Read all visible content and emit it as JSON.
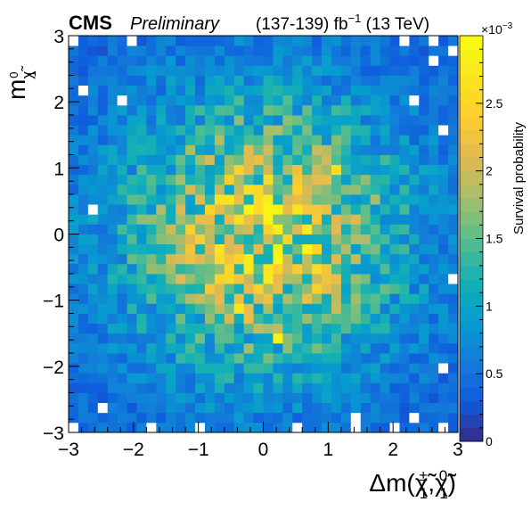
{
  "title": {
    "experiment": "CMS",
    "status": "Preliminary",
    "lumi_prefix": "(137-139) fb",
    "lumi_exp": "−1",
    "lumi_suffix": " (13 TeV)"
  },
  "axes": {
    "x_main": "Δm(",
    "x_sym1": "χ̃",
    "x_sup1": "±",
    "x_sub1": "1",
    "x_comma": ",",
    "x_sym2": "χ̃",
    "x_sup2": "0",
    "x_sub2": "1",
    "x_close": ")",
    "y_main": "m",
    "y_sym": "χ̃",
    "y_sup": "0",
    "y_sub": "1",
    "z_label": "Survival probability",
    "z_multiplier_base": "×10",
    "z_multiplier_exp": "−3"
  },
  "chart_data": {
    "type": "heatmap",
    "xlabel": "Δm(χ̃±1,χ̃01)",
    "ylabel": "mχ̃01",
    "zlabel": "Survival probability",
    "x_range": [
      -3,
      3
    ],
    "y_range": [
      -3,
      3
    ],
    "z_range": [
      0,
      0.003
    ],
    "x_ticks": [
      "−3",
      "−2",
      "−1",
      "0",
      "1",
      "2",
      "3"
    ],
    "y_ticks": [
      "−3",
      "−2",
      "−1",
      "0",
      "1",
      "2",
      "3"
    ],
    "z_ticks": [
      "0",
      "0.5",
      "1",
      "1.5",
      "2",
      "2.5"
    ],
    "z_tick_values": [
      0,
      0.5,
      1,
      1.5,
      2,
      2.5
    ],
    "z_max_display": 3,
    "bins_x": 40,
    "bins_y": 40,
    "values_scale": "values in units of 1e-3",
    "notable_cells": [
      {
        "x": 0.15,
        "y": -0.45,
        "value": 2.95
      },
      {
        "x": 0.15,
        "y": -1.65,
        "value": 2.9
      },
      {
        "x": 0.65,
        "y": -0.2,
        "value": 2.9
      },
      {
        "x": -0.35,
        "y": -1.2,
        "value": 2.7
      },
      {
        "x": 1.05,
        "y": 1.0,
        "value": 2.6
      }
    ],
    "empty_cells": [
      {
        "x": -2.85,
        "y": 2.85
      },
      {
        "x": -2.05,
        "y": 2.85
      },
      {
        "x": 2.15,
        "y": 2.85
      },
      {
        "x": 2.55,
        "y": 2.85
      },
      {
        "x": 2.85,
        "y": 2.7
      },
      {
        "x": 2.6,
        "y": 2.55
      },
      {
        "x": -2.7,
        "y": 2.2
      },
      {
        "x": -2.2,
        "y": 2.0
      },
      {
        "x": 2.3,
        "y": 2.05
      },
      {
        "x": -2.6,
        "y": 0.3
      },
      {
        "x": -2.85,
        "y": -2.85
      },
      {
        "x": -2.45,
        "y": -2.6
      },
      {
        "x": -1.75,
        "y": -2.9
      },
      {
        "x": 1.35,
        "y": -2.75
      },
      {
        "x": 1.45,
        "y": -2.95
      },
      {
        "x": 2.05,
        "y": -2.85
      },
      {
        "x": 2.35,
        "y": -2.75
      },
      {
        "x": 2.8,
        "y": -2.95
      },
      {
        "x": 2.8,
        "y": -2.0
      },
      {
        "x": 2.85,
        "y": -0.75
      },
      {
        "x": 2.7,
        "y": 1.6
      },
      {
        "x": -1.0,
        "y": -2.95
      },
      {
        "x": 0.5,
        "y": -2.9
      }
    ],
    "color_scale": "parula (blue → green → yellow)",
    "colors": {
      "low": "#352a87",
      "mid": "#21b49c",
      "high": "#f9fb0e",
      "empty": "#ffffff"
    }
  }
}
